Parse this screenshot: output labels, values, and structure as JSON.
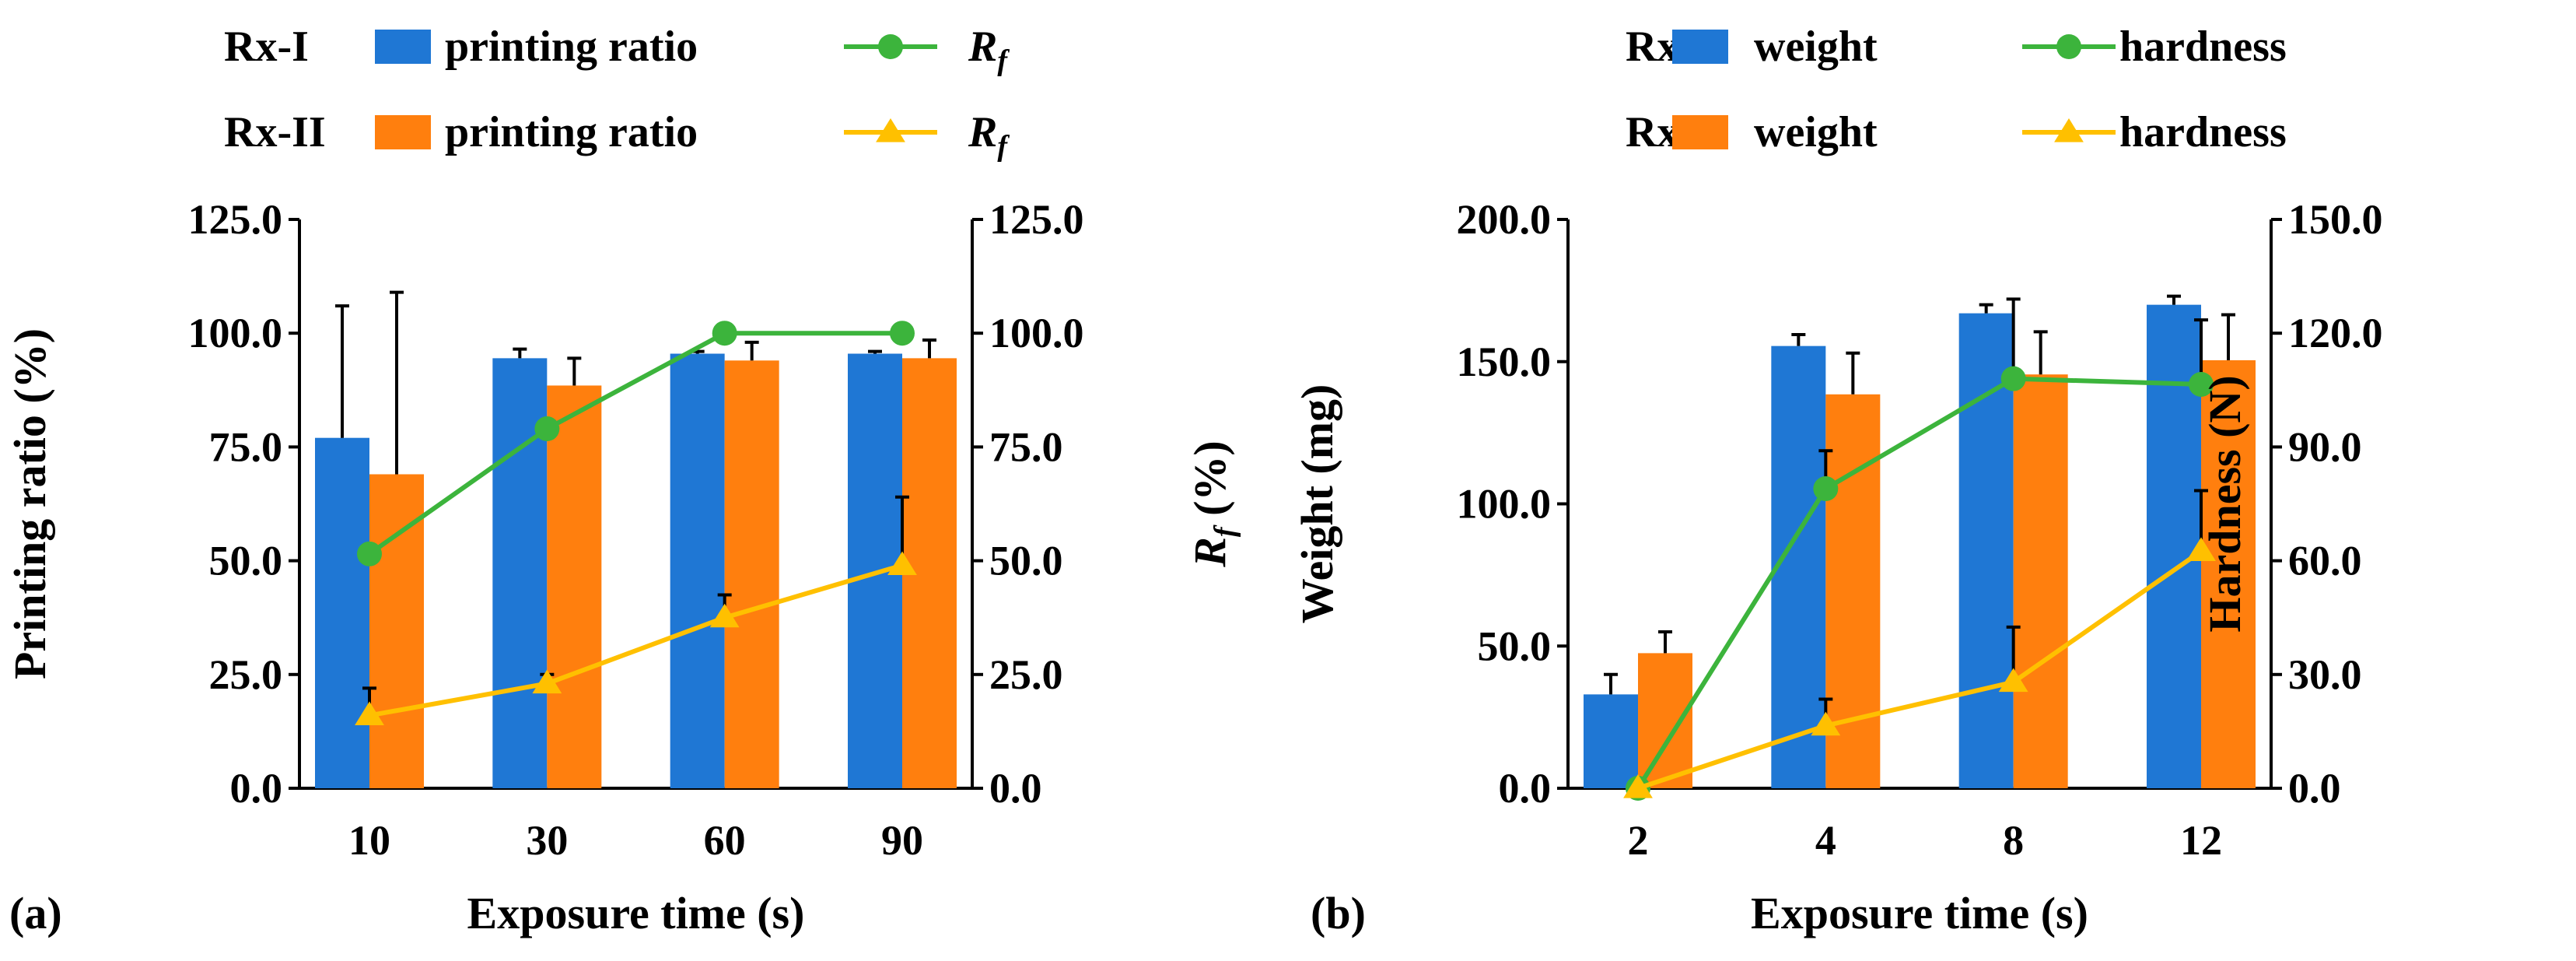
{
  "chart_data": [
    {
      "type": "bar",
      "panel_label": "(a)",
      "xlabel": "Exposure time (s)",
      "ylabel": "Printing ratio (%)",
      "ylabel_right_main": "R",
      "ylabel_right_sub": "f",
      "ylabel_right_unit": " (%)",
      "categories": [
        "10",
        "30",
        "60",
        "90"
      ],
      "ylim": [
        0,
        125
      ],
      "yticks": [
        "0.0",
        "25.0",
        "50.0",
        "75.0",
        "100.0",
        "125.0"
      ],
      "ylim_right": [
        0,
        125
      ],
      "yticks_right": [
        "0.0",
        "25.0",
        "50.0",
        "75.0",
        "100.0",
        "125.0"
      ],
      "legend": {
        "rows": [
          "Rx-I",
          "Rx-II"
        ],
        "bar_label": "printing ratio",
        "line_label_main": "R",
        "line_label_sub": "f"
      },
      "series": [
        {
          "name": "Rx-I printing ratio",
          "kind": "bar",
          "color": "#1f77d4",
          "values": [
            77,
            94.5,
            95.5,
            95.5
          ],
          "errors": [
            29,
            2,
            0.5,
            0.5
          ]
        },
        {
          "name": "Rx-II printing ratio",
          "kind": "bar",
          "color": "#ff7f0e",
          "values": [
            69,
            88.5,
            94,
            94.5
          ],
          "errors": [
            40,
            6,
            4,
            4
          ]
        },
        {
          "name": "Rx-I Rf",
          "kind": "line",
          "marker": "circle",
          "color": "#3cb43c",
          "values": [
            51.5,
            79,
            100,
            100
          ],
          "errors": [
            0,
            0,
            0,
            0
          ]
        },
        {
          "name": "Rx-II Rf",
          "kind": "line",
          "marker": "triangle",
          "color": "#ffc000",
          "values": [
            16,
            23,
            37.5,
            49
          ],
          "errors": [
            6,
            2,
            5,
            15
          ]
        }
      ]
    },
    {
      "type": "bar",
      "panel_label": "(b)",
      "xlabel": "Exposure time (s)",
      "ylabel": "Weight (mg)",
      "ylabel_right": "Hardness  (N)",
      "categories": [
        "2",
        "4",
        "8",
        "12"
      ],
      "ylim": [
        0,
        200
      ],
      "yticks": [
        "0.0",
        "50.0",
        "100.0",
        "150.0",
        "200.0"
      ],
      "ylim_right": [
        0,
        150
      ],
      "yticks_right": [
        "0.0",
        "30.0",
        "60.0",
        "90.0",
        "120.0",
        "150.0"
      ],
      "legend": {
        "rows": [
          "Rx-I",
          "Rx-II"
        ],
        "bar_label": "weight",
        "line_label": "hardness"
      },
      "series": [
        {
          "name": "Rx-I weight",
          "kind": "bar",
          "axis": "left",
          "color": "#1f77d4",
          "values": [
            33,
            155.5,
            167,
            170
          ],
          "errors": [
            7,
            4,
            3,
            3
          ]
        },
        {
          "name": "Rx-II weight",
          "kind": "bar",
          "axis": "left",
          "color": "#ff7f0e",
          "values": [
            47.5,
            138.5,
            145.5,
            150.5
          ],
          "errors": [
            7.5,
            14.5,
            15,
            16
          ]
        },
        {
          "name": "Rx-I hardness",
          "kind": "line",
          "axis": "right",
          "marker": "circle",
          "color": "#3cb43c",
          "values": [
            0,
            79,
            108,
            106.5
          ],
          "errors": [
            0,
            10,
            21,
            17
          ]
        },
        {
          "name": "Rx-II hardness",
          "kind": "line",
          "axis": "right",
          "marker": "triangle",
          "color": "#ffc000",
          "values": [
            0,
            16.5,
            28,
            62.5
          ],
          "errors": [
            0,
            7,
            14.5,
            16
          ]
        }
      ]
    }
  ]
}
